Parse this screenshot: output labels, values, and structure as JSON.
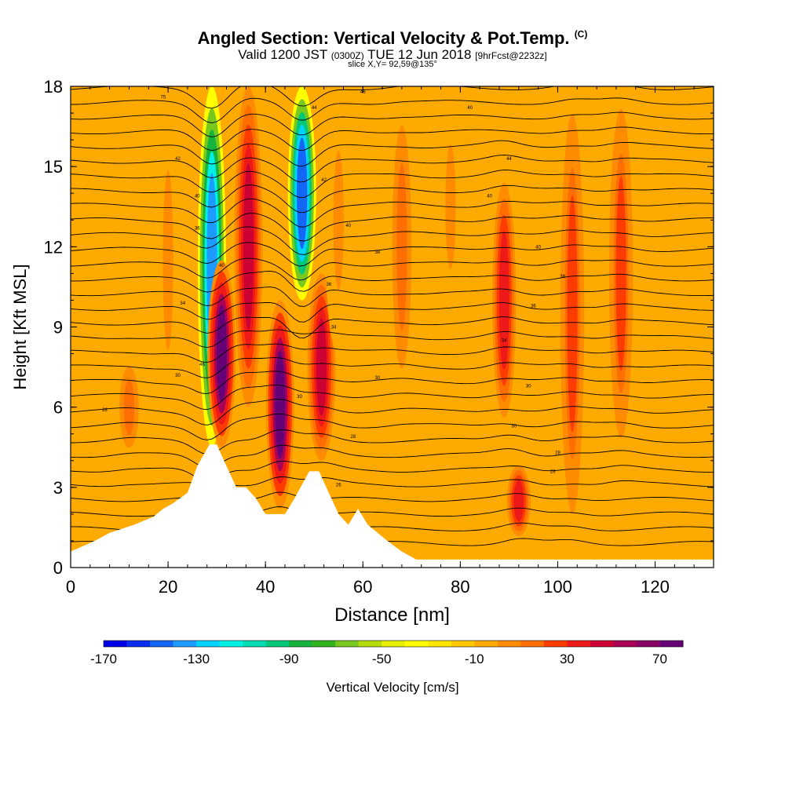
{
  "chart_data": {
    "type": "heatmap",
    "title_main": "Angled Section: Vertical Velocity & Pot.Temp.",
    "title_unit": "(C)",
    "subtitle_valid": "Valid 1200 JST",
    "subtitle_utc": "(0300Z)",
    "subtitle_date": "TUE 12 Jun 2018",
    "subtitle_fcst": "[9hrFcst@2232z]",
    "slice_label": "slice X,Y= 92,59@135°",
    "xlabel": "Distance [nm]",
    "ylabel": "Height [Kft MSL]",
    "xlim": [
      0,
      132
    ],
    "ylim": [
      0,
      18
    ],
    "xticks": [
      "0",
      "20",
      "40",
      "60",
      "80",
      "100",
      "120"
    ],
    "yticks": [
      "0",
      "3",
      "6",
      "9",
      "12",
      "15",
      "18"
    ],
    "colorbar_label": "Vertical Velocity [cm/s]",
    "colorbar_ticks": [
      "-170",
      "-130",
      "-90",
      "-50",
      "-10",
      "30",
      "70"
    ],
    "colorbar_range": [
      -170,
      80
    ],
    "colorbar_colors": [
      "#0000e6",
      "#0a2ef0",
      "#1466f5",
      "#1e9bff",
      "#00d2ff",
      "#00f0e6",
      "#00dcb4",
      "#00c878",
      "#14b43c",
      "#32b41e",
      "#78c81e",
      "#b4dc0a",
      "#e6f000",
      "#ffff00",
      "#ffe600",
      "#ffc800",
      "#ffaa00",
      "#ff8c00",
      "#ff6e00",
      "#ff3c00",
      "#ee1a1a",
      "#cc0033",
      "#aa0055",
      "#880066",
      "#660077"
    ],
    "background_field_cm_s": -10,
    "features": [
      {
        "x": 29,
        "z_bottom": 4.5,
        "z_top": 18,
        "w": -140
      },
      {
        "x": 31,
        "z_bottom": 4.5,
        "z_top": 11.5,
        "w": 70
      },
      {
        "x": 36.5,
        "z_bottom": 6,
        "z_top": 18,
        "w": 40
      },
      {
        "x": 43,
        "z_bottom": 2.2,
        "z_top": 10,
        "w": 70
      },
      {
        "x": 47.5,
        "z_bottom": 10,
        "z_top": 18,
        "w": -150
      },
      {
        "x": 51.5,
        "z_bottom": 4,
        "z_top": 11,
        "w": 40
      },
      {
        "x": 89,
        "z_bottom": 5,
        "z_top": 15,
        "w": 30
      },
      {
        "x": 103,
        "z_bottom": 1,
        "z_top": 18,
        "w": 20
      },
      {
        "x": 113,
        "z_bottom": 4,
        "z_top": 18,
        "w": 20
      },
      {
        "x": 20,
        "z_bottom": 5,
        "z_top": 18,
        "w": 0
      },
      {
        "x": 12,
        "z_bottom": 4,
        "z_top": 8,
        "w": 10
      },
      {
        "x": 55,
        "z_bottom": 8,
        "z_top": 18,
        "w": 0
      },
      {
        "x": 68,
        "z_bottom": 6,
        "z_top": 18,
        "w": 10
      },
      {
        "x": 78,
        "z_bottom": 9,
        "z_top": 18,
        "w": 0
      },
      {
        "x": 92,
        "z_bottom": 1,
        "z_top": 4,
        "w": 30
      }
    ],
    "terrain_profile": [
      {
        "x": 0,
        "z": 0.6
      },
      {
        "x": 5,
        "z": 1.0
      },
      {
        "x": 8,
        "z": 1.3
      },
      {
        "x": 13,
        "z": 1.6
      },
      {
        "x": 17,
        "z": 1.9
      },
      {
        "x": 19,
        "z": 2.2
      },
      {
        "x": 21,
        "z": 2.4
      },
      {
        "x": 24,
        "z": 2.8
      },
      {
        "x": 26,
        "z": 3.8
      },
      {
        "x": 28.5,
        "z": 4.6
      },
      {
        "x": 30,
        "z": 4.6
      },
      {
        "x": 32,
        "z": 3.8
      },
      {
        "x": 34,
        "z": 3.0
      },
      {
        "x": 36,
        "z": 3.0
      },
      {
        "x": 38,
        "z": 2.6
      },
      {
        "x": 40,
        "z": 2.0
      },
      {
        "x": 44,
        "z": 2.0
      },
      {
        "x": 46,
        "z": 2.6
      },
      {
        "x": 49,
        "z": 3.6
      },
      {
        "x": 51,
        "z": 3.6
      },
      {
        "x": 53,
        "z": 2.8
      },
      {
        "x": 55,
        "z": 2.0
      },
      {
        "x": 57,
        "z": 1.6
      },
      {
        "x": 59,
        "z": 2.2
      },
      {
        "x": 61,
        "z": 1.6
      },
      {
        "x": 65,
        "z": 1.0
      },
      {
        "x": 68,
        "z": 0.6
      },
      {
        "x": 71,
        "z": 0.3
      },
      {
        "x": 132,
        "z": 0.3
      }
    ],
    "pot_temp_contour_labels": [
      {
        "x": 19,
        "z": 17.6,
        "text": "75"
      },
      {
        "x": 60,
        "z": 17.8,
        "text": "46"
      },
      {
        "x": 50,
        "z": 17.2,
        "text": "44"
      },
      {
        "x": 82,
        "z": 17.2,
        "text": "40"
      },
      {
        "x": 22,
        "z": 15.3,
        "text": "42"
      },
      {
        "x": 90,
        "z": 15.3,
        "text": "44"
      },
      {
        "x": 52,
        "z": 14.5,
        "text": "42"
      },
      {
        "x": 26,
        "z": 13.9,
        "text": "40"
      },
      {
        "x": 86,
        "z": 13.9,
        "text": "40"
      },
      {
        "x": 57,
        "z": 12.8,
        "text": "40"
      },
      {
        "x": 26,
        "z": 12.7,
        "text": "36"
      },
      {
        "x": 63,
        "z": 11.8,
        "text": "38"
      },
      {
        "x": 96,
        "z": 12.0,
        "text": "40"
      },
      {
        "x": 31,
        "z": 11.3,
        "text": "40"
      },
      {
        "x": 101,
        "z": 10.9,
        "text": "38"
      },
      {
        "x": 23,
        "z": 9.9,
        "text": "34"
      },
      {
        "x": 53,
        "z": 10.6,
        "text": "36"
      },
      {
        "x": 95,
        "z": 9.8,
        "text": "36"
      },
      {
        "x": 54,
        "z": 9.0,
        "text": "34"
      },
      {
        "x": 89,
        "z": 8.5,
        "text": "34"
      },
      {
        "x": 27,
        "z": 7.6,
        "text": "46"
      },
      {
        "x": 22,
        "z": 7.2,
        "text": "30"
      },
      {
        "x": 63,
        "z": 7.1,
        "text": "30"
      },
      {
        "x": 94,
        "z": 6.8,
        "text": "30"
      },
      {
        "x": 47,
        "z": 6.4,
        "text": "30"
      },
      {
        "x": 7,
        "z": 5.9,
        "text": "28"
      },
      {
        "x": 91,
        "z": 5.3,
        "text": "30"
      },
      {
        "x": 58,
        "z": 4.9,
        "text": "28"
      },
      {
        "x": 100,
        "z": 4.3,
        "text": "28"
      },
      {
        "x": 99,
        "z": 3.6,
        "text": "26"
      },
      {
        "x": 55,
        "z": 3.1,
        "text": "26"
      }
    ]
  }
}
